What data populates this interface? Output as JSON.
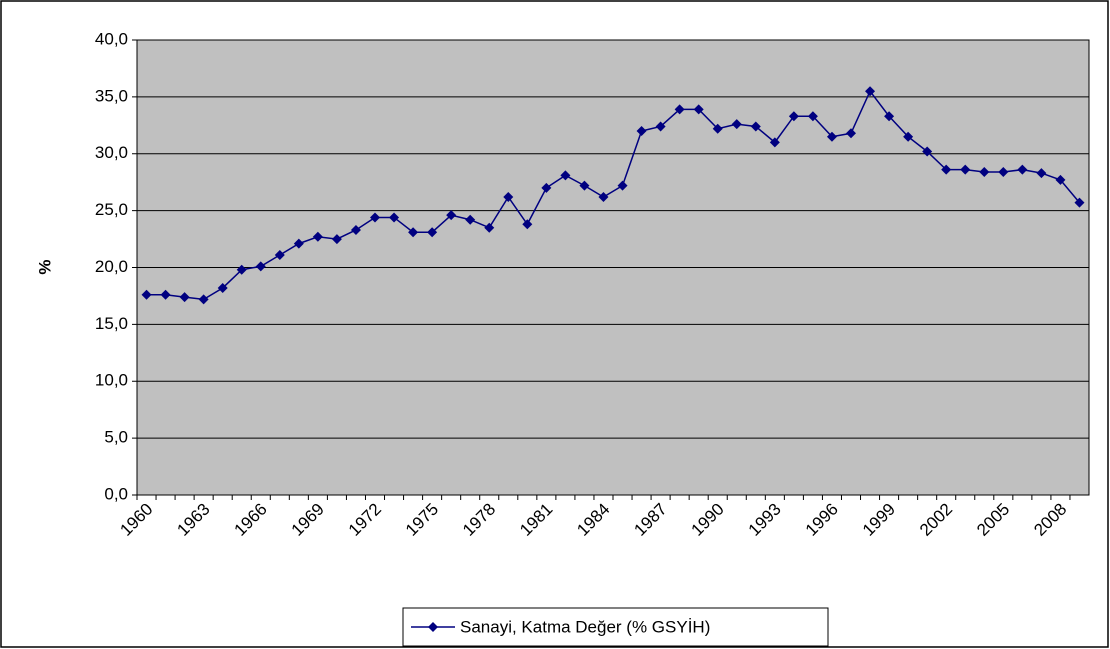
{
  "chart_data": {
    "type": "line",
    "y_label": "%",
    "categories": [
      "1960",
      null,
      null,
      "1963",
      null,
      null,
      "1966",
      null,
      null,
      "1969",
      null,
      null,
      "1972",
      null,
      null,
      "1975",
      null,
      null,
      "1978",
      null,
      null,
      "1981",
      null,
      null,
      "1984",
      null,
      null,
      "1987",
      null,
      null,
      "1990",
      null,
      null,
      "1993",
      null,
      null,
      "1996",
      null,
      null,
      "1999",
      null,
      null,
      "2002",
      null,
      null,
      "2005",
      null,
      null,
      "2008",
      null
    ],
    "series": [
      {
        "name": "Sanayi, Katma Değer (% GSYİH)",
        "color": "#000080",
        "values": [
          17.6,
          17.6,
          17.4,
          17.2,
          18.2,
          19.8,
          20.1,
          21.1,
          22.1,
          22.7,
          22.5,
          23.3,
          24.4,
          24.4,
          23.1,
          23.1,
          24.6,
          24.2,
          23.5,
          26.2,
          23.8,
          27.0,
          28.1,
          27.2,
          26.2,
          27.2,
          32.0,
          32.4,
          33.9,
          33.9,
          32.2,
          32.6,
          32.4,
          31.0,
          33.3,
          33.3,
          31.5,
          31.8,
          35.5,
          33.3,
          31.5,
          30.2,
          28.6,
          28.6,
          28.4,
          28.4,
          28.6,
          28.3,
          27.7,
          25.7
        ]
      }
    ],
    "ylim": [
      0,
      40
    ],
    "yticks": [
      {
        "value": 0,
        "label": "0,0"
      },
      {
        "value": 5,
        "label": "5,0"
      },
      {
        "value": 10,
        "label": "10,0"
      },
      {
        "value": 15,
        "label": "15,0"
      },
      {
        "value": 20,
        "label": "20,0"
      },
      {
        "value": 25,
        "label": "25,0"
      },
      {
        "value": 30,
        "label": "30,0"
      },
      {
        "value": 35,
        "label": "35,0"
      },
      {
        "value": 40,
        "label": "40,0"
      }
    ],
    "grid": true,
    "plot_background": "#c0c0c0",
    "legend": "bottom"
  }
}
